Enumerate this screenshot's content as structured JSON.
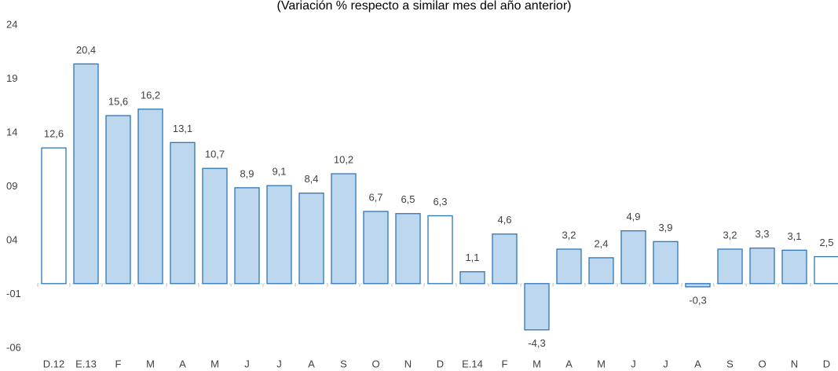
{
  "chart_data": {
    "type": "bar",
    "title": "(Variación % respecto a similar mes del año anterior)",
    "categories": [
      "D.12",
      "E.13",
      "F",
      "M",
      "A",
      "M",
      "J",
      "J",
      "A",
      "S",
      "O",
      "N",
      "D",
      "E.14",
      "F",
      "M",
      "A",
      "M",
      "J",
      "J",
      "A",
      "S",
      "O",
      "N",
      "D"
    ],
    "values": [
      12.6,
      20.4,
      15.6,
      16.2,
      13.1,
      10.7,
      8.9,
      9.1,
      8.4,
      10.2,
      6.7,
      6.5,
      6.3,
      1.1,
      4.6,
      -4.3,
      3.2,
      2.4,
      4.9,
      3.9,
      -0.3,
      3.2,
      3.3,
      3.1,
      2.5
    ],
    "value_labels": [
      "12,6",
      "20,4",
      "15,6",
      "16,2",
      "13,1",
      "10,7",
      "8,9",
      "9,1",
      "8,4",
      "10,2",
      "6,7",
      "6,5",
      "6,3",
      "1,1",
      "4,6",
      "-4,3",
      "3,2",
      "2,4",
      "4,9",
      "3,9",
      "-0,3",
      "3,2",
      "3,3",
      "3,1",
      "2,5"
    ],
    "colors": [
      "#ffffff",
      "#bdd7ee",
      "#bdd7ee",
      "#bdd7ee",
      "#bdd7ee",
      "#bdd7ee",
      "#bdd7ee",
      "#bdd7ee",
      "#bdd7ee",
      "#bdd7ee",
      "#bdd7ee",
      "#bdd7ee",
      "#ffffff",
      "#bdd7ee",
      "#bdd7ee",
      "#bdd7ee",
      "#bdd7ee",
      "#bdd7ee",
      "#bdd7ee",
      "#bdd7ee",
      "#bdd7ee",
      "#bdd7ee",
      "#bdd7ee",
      "#bdd7ee",
      "#ffffff"
    ],
    "edge_color": "#2e75b6",
    "ylim": [
      -6,
      24
    ],
    "yticks": [
      24,
      19,
      14,
      {
        "value": 9,
        "label": "09"
      },
      {
        "value": 4,
        "label": "04"
      },
      {
        "value": -1,
        "label": "-01"
      },
      {
        "value": -6,
        "label": "-06"
      }
    ],
    "grid": false
  }
}
